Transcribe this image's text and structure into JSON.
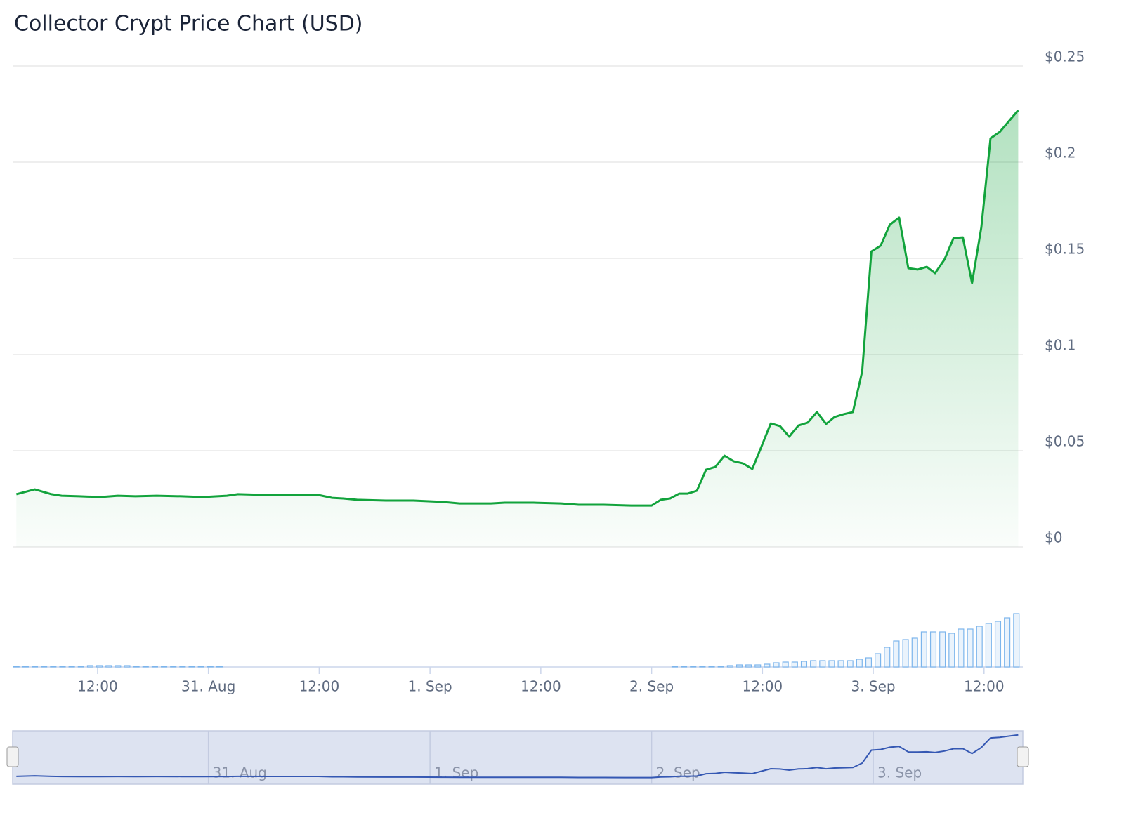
{
  "chart_data": {
    "type": "line",
    "title": "Collector Crypt Price Chart (USD)",
    "x": [
      3.2,
      5.2,
      7.0,
      8.1,
      10.0,
      12.3,
      14.2,
      16.1,
      18.4,
      21.1,
      23.4,
      26.0,
      27.2,
      30.2,
      33.3,
      35.9,
      37.4,
      38.6,
      40.1,
      43.2,
      46.2,
      49.3,
      51.2,
      54.6,
      56.1,
      59.2,
      62.2,
      64.1,
      66.8,
      69.8,
      72.0,
      73.0,
      74.0,
      75.0,
      75.9,
      76.9,
      77.9,
      78.9,
      79.9,
      80.9,
      81.9,
      82.9,
      83.9,
      84.9,
      85.9,
      86.9,
      87.9,
      88.9,
      89.9,
      90.9,
      91.8,
      92.8,
      93.8,
      94.8,
      95.8,
      96.8,
      97.8,
      98.8,
      99.8,
      100.8,
      101.8,
      102.7,
      103.7,
      104.7,
      105.7,
      106.7,
      107.7,
      108.7,
      109.7,
      111.7
    ],
    "values": [
      0.0274,
      0.0299,
      0.0274,
      0.0266,
      0.0263,
      0.0259,
      0.0266,
      0.0263,
      0.0266,
      0.0263,
      0.0259,
      0.0266,
      0.0274,
      0.027,
      0.027,
      0.027,
      0.0255,
      0.0252,
      0.0245,
      0.0241,
      0.0241,
      0.0234,
      0.0226,
      0.0226,
      0.023,
      0.023,
      0.0226,
      0.0219,
      0.0219,
      0.0215,
      0.0215,
      0.0245,
      0.0252,
      0.0277,
      0.0277,
      0.0292,
      0.0401,
      0.0416,
      0.0474,
      0.0445,
      0.0434,
      0.0405,
      0.0522,
      0.0642,
      0.0628,
      0.0573,
      0.0631,
      0.0646,
      0.0701,
      0.0639,
      0.0675,
      0.069,
      0.0701,
      0.0912,
      0.1536,
      0.1566,
      0.1675,
      0.1712,
      0.1449,
      0.1442,
      0.1456,
      0.1423,
      0.1493,
      0.1606,
      0.1609,
      0.1372,
      0.1661,
      0.2124,
      0.2157,
      0.227
    ],
    "color": "#12a33c",
    "xlim": [
      2.8,
      112.2
    ],
    "xticks": [
      {
        "value": 12,
        "label": "12:00"
      },
      {
        "value": 24,
        "label": "31. Aug"
      },
      {
        "value": 36,
        "label": "12:00"
      },
      {
        "value": 48,
        "label": "1. Sep"
      },
      {
        "value": 60,
        "label": "12:00"
      },
      {
        "value": 72,
        "label": "2. Sep"
      },
      {
        "value": 84,
        "label": "12:00"
      },
      {
        "value": 96,
        "label": "3. Sep"
      },
      {
        "value": 108,
        "label": "12:00"
      }
    ],
    "ylim": [
      0,
      0.25
    ],
    "yticks": [
      {
        "value": 0,
        "label": "$0"
      },
      {
        "value": 0.05,
        "label": "$0.05"
      },
      {
        "value": 0.1,
        "label": "$0.1"
      },
      {
        "value": 0.15,
        "label": "$0.15"
      },
      {
        "value": 0.2,
        "label": "$0.2"
      },
      {
        "value": 0.25,
        "label": "$0.25"
      }
    ],
    "grid": true,
    "volume": {
      "color": "#7cb5ec",
      "ylim": [
        0,
        80
      ],
      "x": [
        3.2,
        4.2,
        5.2,
        6.2,
        7.2,
        8.2,
        9.2,
        10.2,
        11.2,
        12.2,
        13.2,
        14.2,
        15.2,
        16.2,
        17.2,
        18.2,
        19.2,
        20.2,
        21.2,
        22.2,
        23.2,
        24.2,
        25.2,
        74.5,
        75.5,
        76.5,
        77.5,
        78.5,
        79.5,
        80.5,
        81.5,
        82.5,
        83.5,
        84.5,
        85.5,
        86.5,
        87.5,
        88.5,
        89.5,
        90.5,
        91.5,
        92.5,
        93.5,
        94.5,
        95.5,
        96.5,
        97.5,
        98.5,
        99.5,
        100.5,
        101.5,
        102.5,
        103.5,
        104.5,
        105.5,
        106.5,
        107.5,
        108.5,
        109.5,
        110.5,
        111.5
      ],
      "values": [
        1,
        1,
        1,
        1,
        1,
        1,
        1,
        1,
        2,
        2,
        2,
        2,
        2,
        1,
        1,
        1,
        1,
        1,
        1,
        1,
        1,
        1,
        1,
        1,
        1,
        1,
        1,
        1,
        1,
        2,
        3,
        3,
        3,
        4,
        6,
        7,
        7,
        8,
        9,
        9,
        9,
        9,
        9,
        11,
        13,
        19,
        28,
        37,
        39,
        41,
        50,
        50,
        50,
        48,
        54,
        54,
        58,
        62,
        65,
        70,
        76
      ]
    }
  }
}
